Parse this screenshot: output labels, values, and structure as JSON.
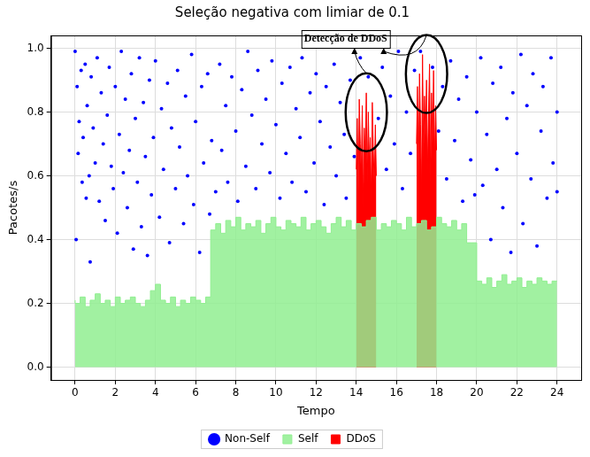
{
  "chart_data": {
    "type": "scatter",
    "title": "Seleção negativa com limiar de 0.1",
    "x_label": "Tempo",
    "y_label": "Pacotes/s",
    "xlim": [
      -1.2,
      25.2
    ],
    "ylim": [
      -0.04,
      1.04
    ],
    "xticks": [
      0,
      2,
      4,
      6,
      8,
      10,
      12,
      14,
      16,
      18,
      20,
      22,
      24
    ],
    "yticks": [
      {
        "value": 0,
        "label": "0.0"
      },
      0.2,
      0.4,
      0.6,
      0.8,
      {
        "value": 1,
        "label": "1.0"
      }
    ],
    "grid": true,
    "legend": "bottom",
    "annotations": [
      {
        "text": "Detecção de DDoS",
        "series": "DDoS"
      }
    ],
    "series": [
      {
        "name": "Non-Self",
        "type": "scatter",
        "color": "#0000ff",
        "marker": "circle",
        "x": [
          0,
          0.05,
          0.1,
          0.15,
          0.2,
          0.3,
          0.35,
          0.4,
          0.5,
          0.55,
          0.6,
          0.7,
          0.75,
          0.8,
          0.9,
          1,
          1.1,
          1.2,
          1.3,
          1.4,
          1.5,
          1.6,
          1.7,
          1.8,
          1.9,
          2,
          2.1,
          2.2,
          2.3,
          2.4,
          2.5,
          2.6,
          2.7,
          2.8,
          2.9,
          3,
          3.1,
          3.2,
          3.3,
          3.4,
          3.5,
          3.6,
          3.7,
          3.8,
          3.9,
          4,
          4.2,
          4.3,
          4.4,
          4.6,
          4.7,
          4.8,
          5,
          5.1,
          5.2,
          5.4,
          5.5,
          5.6,
          5.8,
          5.9,
          6,
          6.2,
          6.3,
          6.4,
          6.6,
          6.7,
          6.8,
          7,
          7.2,
          7.3,
          7.5,
          7.6,
          7.8,
          8,
          8.1,
          8.3,
          8.5,
          8.6,
          8.8,
          9,
          9.1,
          9.3,
          9.5,
          9.7,
          9.8,
          10,
          10.2,
          10.3,
          10.5,
          10.7,
          10.8,
          11,
          11.2,
          11.3,
          11.5,
          11.7,
          11.9,
          12,
          12.2,
          12.4,
          12.5,
          12.7,
          12.9,
          13,
          13.2,
          13.4,
          13.5,
          13.7,
          13.9,
          14.2,
          14.6,
          15.1,
          15.3,
          15.5,
          15.7,
          15.9,
          16.1,
          16.3,
          16.5,
          16.7,
          16.9,
          17.2,
          17.8,
          18.1,
          18.3,
          18.5,
          18.7,
          18.9,
          19.1,
          19.3,
          19.5,
          19.7,
          19.9,
          20,
          20.2,
          20.3,
          20.5,
          20.7,
          20.8,
          21,
          21.2,
          21.3,
          21.5,
          21.7,
          21.8,
          22,
          22.2,
          22.3,
          22.5,
          22.7,
          22.8,
          23,
          23.2,
          23.3,
          23.5,
          23.7,
          23.8,
          24,
          24
        ],
        "values": [
          0.99,
          0.4,
          0.88,
          0.67,
          0.77,
          0.93,
          0.58,
          0.72,
          0.95,
          0.53,
          0.82,
          0.6,
          0.33,
          0.91,
          0.75,
          0.64,
          0.97,
          0.52,
          0.86,
          0.7,
          0.46,
          0.79,
          0.94,
          0.63,
          0.56,
          0.88,
          0.42,
          0.73,
          0.99,
          0.61,
          0.84,
          0.5,
          0.68,
          0.92,
          0.37,
          0.78,
          0.58,
          0.97,
          0.44,
          0.83,
          0.66,
          0.35,
          0.9,
          0.54,
          0.72,
          0.96,
          0.47,
          0.81,
          0.62,
          0.89,
          0.39,
          0.75,
          0.56,
          0.93,
          0.69,
          0.45,
          0.85,
          0.6,
          0.98,
          0.51,
          0.77,
          0.36,
          0.88,
          0.64,
          0.92,
          0.48,
          0.71,
          0.55,
          0.95,
          0.68,
          0.82,
          0.58,
          0.91,
          0.74,
          0.52,
          0.87,
          0.63,
          0.99,
          0.79,
          0.56,
          0.93,
          0.7,
          0.84,
          0.61,
          0.96,
          0.76,
          0.53,
          0.89,
          0.67,
          0.94,
          0.58,
          0.81,
          0.72,
          0.97,
          0.55,
          0.86,
          0.64,
          0.92,
          0.77,
          0.51,
          0.88,
          0.69,
          0.95,
          0.6,
          0.83,
          0.73,
          0.53,
          0.9,
          0.66,
          0.97,
          0.91,
          0.78,
          0.94,
          0.62,
          0.85,
          0.7,
          0.99,
          0.56,
          0.8,
          0.67,
          0.93,
          0.99,
          0.94,
          0.74,
          0.88,
          0.59,
          0.96,
          0.71,
          0.84,
          0.52,
          0.91,
          0.65,
          0.54,
          0.8,
          0.97,
          0.57,
          0.73,
          0.4,
          0.89,
          0.62,
          0.94,
          0.5,
          0.78,
          0.36,
          0.86,
          0.67,
          0.98,
          0.45,
          0.82,
          0.59,
          0.92,
          0.38,
          0.74,
          0.88,
          0.53,
          0.97,
          0.64,
          0.8,
          0.55
        ]
      },
      {
        "name": "DDoS",
        "type": "area",
        "color": "#ff0000",
        "line_style": "solid",
        "x": [
          14,
          14.05,
          14.1,
          14.15,
          14.2,
          14.25,
          14.3,
          14.35,
          14.4,
          14.45,
          14.5,
          14.55,
          14.6,
          14.65,
          14.7,
          14.75,
          14.8,
          14.85,
          14.9,
          14.95,
          15,
          15.5,
          17,
          17.05,
          17.1,
          17.15,
          17.2,
          17.25,
          17.3,
          17.35,
          17.4,
          17.45,
          17.5,
          17.55,
          17.6,
          17.65,
          17.7,
          17.75,
          17.8,
          17.85,
          17.9,
          17.95,
          18
        ],
        "values": [
          0.62,
          0.78,
          0.55,
          0.84,
          0.7,
          0.6,
          0.82,
          0.5,
          0.75,
          0.66,
          0.86,
          0.58,
          0.8,
          0.63,
          0.72,
          0.52,
          0.83,
          0.68,
          0.57,
          0.76,
          0.6,
          null,
          0.7,
          0.88,
          0.6,
          0.92,
          0.76,
          0.55,
          0.98,
          0.66,
          0.85,
          0.72,
          0.9,
          0.62,
          0.8,
          0.95,
          0.58,
          0.86,
          0.7,
          0.93,
          0.64,
          0.82,
          0.68
        ]
      },
      {
        "name": "Self",
        "type": "area",
        "color": "#90ee90",
        "line_style": "steps",
        "x": [
          0,
          0.25,
          0.5,
          0.75,
          1,
          1.25,
          1.5,
          1.75,
          2,
          2.25,
          2.5,
          2.75,
          3,
          3.25,
          3.5,
          3.75,
          4,
          4.25,
          4.5,
          4.75,
          5,
          5.25,
          5.5,
          5.75,
          6,
          6.25,
          6.5,
          6.75,
          7,
          7.25,
          7.5,
          7.75,
          8,
          8.25,
          8.5,
          8.75,
          9,
          9.25,
          9.5,
          9.75,
          10,
          10.25,
          10.5,
          10.75,
          11,
          11.25,
          11.5,
          11.75,
          12,
          12.25,
          12.5,
          12.75,
          13,
          13.25,
          13.5,
          13.75,
          14,
          14.25,
          14.5,
          14.75,
          15,
          15.25,
          15.5,
          15.75,
          16,
          16.25,
          16.5,
          16.75,
          17,
          17.25,
          17.5,
          17.75,
          18,
          18.25,
          18.5,
          18.75,
          19,
          19.25,
          19.5,
          19.75,
          20,
          20.25,
          20.5,
          20.75,
          21,
          21.25,
          21.5,
          21.75,
          22,
          22.25,
          22.5,
          22.75,
          23,
          23.25,
          23.5,
          23.75,
          24
        ],
        "values": [
          0.21,
          0.2,
          0.22,
          0.19,
          0.21,
          0.23,
          0.2,
          0.21,
          0.19,
          0.22,
          0.2,
          0.21,
          0.22,
          0.2,
          0.19,
          0.21,
          0.24,
          0.26,
          0.21,
          0.2,
          0.22,
          0.19,
          0.21,
          0.2,
          0.22,
          0.21,
          0.2,
          0.22,
          0.43,
          0.45,
          0.42,
          0.46,
          0.44,
          0.47,
          0.43,
          0.45,
          0.44,
          0.46,
          0.42,
          0.45,
          0.47,
          0.44,
          0.43,
          0.46,
          0.45,
          0.44,
          0.47,
          0.43,
          0.45,
          0.46,
          0.44,
          0.42,
          0.45,
          0.47,
          0.44,
          0.46,
          0.43,
          0.45,
          0.44,
          0.46,
          0.47,
          0.43,
          0.45,
          0.44,
          0.46,
          0.45,
          0.43,
          0.47,
          0.44,
          0.45,
          0.46,
          0.43,
          0.44,
          0.47,
          0.45,
          0.44,
          0.46,
          0.43,
          0.45,
          0.39,
          0.39,
          0.27,
          0.26,
          0.28,
          0.25,
          0.27,
          0.29,
          0.26,
          0.27,
          0.28,
          0.25,
          0.27,
          0.26,
          0.28,
          0.27,
          0.26,
          0.27
        ]
      }
    ]
  }
}
